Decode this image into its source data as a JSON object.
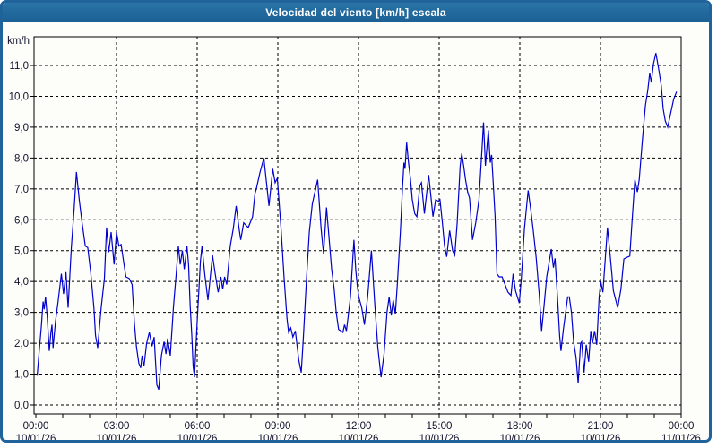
{
  "window": {
    "title": "Velocidad del viento [km/h] escala",
    "colors": {
      "frame": "#1f639a",
      "titlebar": "#21689a",
      "title_text": "#ffffff",
      "background": "#fdfdfa",
      "plot_border": "#000000",
      "grid": "#000000",
      "line": "#0000cd",
      "tick_text": "#10102c"
    }
  },
  "chart_data": {
    "type": "line",
    "title": "Velocidad del viento [km/h] escala",
    "ylabel": "km/h",
    "xlabel": "",
    "ylim": [
      0,
      12
    ],
    "xlim_hours": [
      0,
      24
    ],
    "grid": "dashed",
    "legend": "none",
    "decimal_separator": ",",
    "y_ticks": [
      {
        "value": 0,
        "label": "0,0"
      },
      {
        "value": 1,
        "label": "1,0"
      },
      {
        "value": 2,
        "label": "2,0"
      },
      {
        "value": 3,
        "label": "3,0"
      },
      {
        "value": 4,
        "label": "4,0"
      },
      {
        "value": 5,
        "label": "5,0"
      },
      {
        "value": 6,
        "label": "6,0"
      },
      {
        "value": 7,
        "label": "7,0"
      },
      {
        "value": 8,
        "label": "8,0"
      },
      {
        "value": 9,
        "label": "9,0"
      },
      {
        "value": 10,
        "label": "10,0"
      },
      {
        "value": 11,
        "label": "11,0"
      }
    ],
    "x_ticks": [
      {
        "hour": 0,
        "time": "00:00",
        "date": "10/01/26"
      },
      {
        "hour": 3,
        "time": "03:00",
        "date": "10/01/26"
      },
      {
        "hour": 6,
        "time": "06:00",
        "date": "10/01/26"
      },
      {
        "hour": 9,
        "time": "09:00",
        "date": "10/01/26"
      },
      {
        "hour": 12,
        "time": "12:00",
        "date": "10/01/26"
      },
      {
        "hour": 15,
        "time": "15:00",
        "date": "10/01/26"
      },
      {
        "hour": 18,
        "time": "18:00",
        "date": "10/01/26"
      },
      {
        "hour": 21,
        "time": "21:00",
        "date": "10/01/26"
      },
      {
        "hour": 24,
        "time": "00:00",
        "date": "11/01/26"
      }
    ],
    "minor_tick_every_hours": 1,
    "series_name": "Velocidad del viento",
    "units": "km/h",
    "points": [
      [
        0.05,
        0.95
      ],
      [
        0.13,
        1.8
      ],
      [
        0.2,
        2.5
      ],
      [
        0.27,
        3.35
      ],
      [
        0.31,
        3.1
      ],
      [
        0.36,
        3.5
      ],
      [
        0.42,
        2.9
      ],
      [
        0.5,
        1.75
      ],
      [
        0.56,
        2.35
      ],
      [
        0.6,
        2.6
      ],
      [
        0.64,
        1.85
      ],
      [
        0.73,
        2.7
      ],
      [
        0.82,
        3.3
      ],
      [
        0.95,
        4.25
      ],
      [
        1.03,
        3.6
      ],
      [
        1.12,
        4.3
      ],
      [
        1.2,
        3.15
      ],
      [
        1.32,
        5.1
      ],
      [
        1.42,
        6.3
      ],
      [
        1.51,
        7.55
      ],
      [
        1.62,
        6.6
      ],
      [
        1.72,
        5.9
      ],
      [
        1.84,
        5.15
      ],
      [
        1.93,
        5.1
      ],
      [
        2.04,
        4.3
      ],
      [
        2.16,
        3.15
      ],
      [
        2.22,
        2.25
      ],
      [
        2.3,
        1.85
      ],
      [
        2.43,
        3.15
      ],
      [
        2.55,
        4.1
      ],
      [
        2.63,
        5.75
      ],
      [
        2.71,
        4.95
      ],
      [
        2.8,
        5.6
      ],
      [
        2.91,
        4.55
      ],
      [
        3.0,
        5.6
      ],
      [
        3.09,
        5.15
      ],
      [
        3.17,
        5.2
      ],
      [
        3.28,
        4.55
      ],
      [
        3.35,
        4.15
      ],
      [
        3.47,
        4.1
      ],
      [
        3.58,
        3.9
      ],
      [
        3.67,
        2.6
      ],
      [
        3.74,
        1.9
      ],
      [
        3.83,
        1.35
      ],
      [
        3.9,
        1.2
      ],
      [
        3.95,
        1.6
      ],
      [
        4.02,
        1.25
      ],
      [
        4.12,
        2.0
      ],
      [
        4.22,
        2.35
      ],
      [
        4.32,
        1.9
      ],
      [
        4.4,
        2.2
      ],
      [
        4.5,
        0.65
      ],
      [
        4.57,
        0.5
      ],
      [
        4.67,
        1.6
      ],
      [
        4.77,
        2.05
      ],
      [
        4.84,
        1.65
      ],
      [
        4.9,
        2.15
      ],
      [
        5.0,
        1.6
      ],
      [
        5.12,
        3.2
      ],
      [
        5.22,
        4.25
      ],
      [
        5.3,
        5.15
      ],
      [
        5.37,
        4.55
      ],
      [
        5.45,
        5.0
      ],
      [
        5.52,
        4.4
      ],
      [
        5.62,
        5.15
      ],
      [
        5.68,
        4.55
      ],
      [
        5.74,
        3.2
      ],
      [
        5.8,
        2.25
      ],
      [
        5.85,
        1.25
      ],
      [
        5.9,
        0.9
      ],
      [
        6.0,
        2.7
      ],
      [
        6.12,
        4.65
      ],
      [
        6.18,
        5.15
      ],
      [
        6.28,
        4.25
      ],
      [
        6.4,
        3.4
      ],
      [
        6.57,
        4.85
      ],
      [
        6.67,
        4.25
      ],
      [
        6.78,
        3.65
      ],
      [
        6.88,
        4.15
      ],
      [
        6.95,
        3.75
      ],
      [
        7.02,
        4.15
      ],
      [
        7.1,
        3.9
      ],
      [
        7.23,
        5.15
      ],
      [
        7.34,
        5.7
      ],
      [
        7.45,
        6.45
      ],
      [
        7.56,
        5.7
      ],
      [
        7.62,
        5.35
      ],
      [
        7.73,
        5.9
      ],
      [
        7.84,
        5.8
      ],
      [
        7.9,
        5.75
      ],
      [
        8.06,
        6.1
      ],
      [
        8.15,
        6.85
      ],
      [
        8.2,
        7.0
      ],
      [
        8.34,
        7.55
      ],
      [
        8.48,
        8.0
      ],
      [
        8.67,
        6.45
      ],
      [
        8.81,
        7.65
      ],
      [
        8.9,
        7.2
      ],
      [
        8.98,
        7.35
      ],
      [
        9.12,
        5.7
      ],
      [
        9.23,
        4.15
      ],
      [
        9.34,
        2.8
      ],
      [
        9.4,
        2.35
      ],
      [
        9.48,
        2.5
      ],
      [
        9.56,
        2.2
      ],
      [
        9.65,
        2.4
      ],
      [
        9.78,
        1.45
      ],
      [
        9.87,
        1.05
      ],
      [
        9.95,
        2.2
      ],
      [
        10.06,
        4.0
      ],
      [
        10.17,
        5.6
      ],
      [
        10.28,
        6.5
      ],
      [
        10.48,
        7.3
      ],
      [
        10.61,
        5.7
      ],
      [
        10.7,
        4.9
      ],
      [
        10.81,
        6.4
      ],
      [
        10.92,
        5.25
      ],
      [
        11.0,
        4.4
      ],
      [
        11.09,
        3.8
      ],
      [
        11.17,
        3.0
      ],
      [
        11.26,
        2.45
      ],
      [
        11.34,
        2.4
      ],
      [
        11.42,
        2.35
      ],
      [
        11.48,
        2.6
      ],
      [
        11.55,
        2.4
      ],
      [
        11.62,
        2.9
      ],
      [
        11.7,
        3.5
      ],
      [
        11.83,
        5.35
      ],
      [
        11.9,
        4.35
      ],
      [
        11.95,
        3.9
      ],
      [
        12.01,
        3.5
      ],
      [
        12.12,
        3.15
      ],
      [
        12.22,
        2.6
      ],
      [
        12.34,
        3.5
      ],
      [
        12.48,
        5.0
      ],
      [
        12.61,
        3.2
      ],
      [
        12.72,
        1.85
      ],
      [
        12.84,
        0.9
      ],
      [
        12.95,
        1.65
      ],
      [
        13.06,
        3.0
      ],
      [
        13.14,
        3.5
      ],
      [
        13.22,
        2.9
      ],
      [
        13.29,
        3.4
      ],
      [
        13.37,
        2.95
      ],
      [
        13.45,
        4.0
      ],
      [
        13.56,
        5.65
      ],
      [
        13.64,
        7.1
      ],
      [
        13.69,
        7.85
      ],
      [
        13.73,
        7.65
      ],
      [
        13.79,
        8.5
      ],
      [
        13.86,
        7.85
      ],
      [
        13.93,
        7.35
      ],
      [
        14.0,
        6.65
      ],
      [
        14.09,
        6.2
      ],
      [
        14.17,
        6.1
      ],
      [
        14.28,
        7.1
      ],
      [
        14.34,
        7.2
      ],
      [
        14.45,
        6.2
      ],
      [
        14.61,
        7.45
      ],
      [
        14.7,
        6.7
      ],
      [
        14.77,
        6.1
      ],
      [
        14.87,
        6.65
      ],
      [
        14.97,
        6.6
      ],
      [
        15.03,
        6.65
      ],
      [
        15.12,
        5.9
      ],
      [
        15.2,
        5.15
      ],
      [
        15.28,
        4.8
      ],
      [
        15.39,
        5.65
      ],
      [
        15.5,
        5.0
      ],
      [
        15.58,
        4.85
      ],
      [
        15.67,
        5.9
      ],
      [
        15.78,
        7.75
      ],
      [
        15.84,
        8.15
      ],
      [
        15.91,
        7.75
      ],
      [
        15.98,
        7.3
      ],
      [
        16.06,
        6.9
      ],
      [
        16.13,
        6.7
      ],
      [
        16.24,
        5.35
      ],
      [
        16.36,
        5.9
      ],
      [
        16.48,
        6.65
      ],
      [
        16.59,
        8.25
      ],
      [
        16.65,
        9.15
      ],
      [
        16.72,
        7.75
      ],
      [
        16.83,
        8.9
      ],
      [
        16.9,
        7.85
      ],
      [
        16.95,
        8.1
      ],
      [
        17.01,
        7.2
      ],
      [
        17.08,
        6.1
      ],
      [
        17.15,
        4.25
      ],
      [
        17.23,
        4.15
      ],
      [
        17.34,
        4.15
      ],
      [
        17.45,
        3.9
      ],
      [
        17.56,
        3.65
      ],
      [
        17.67,
        3.55
      ],
      [
        17.75,
        4.25
      ],
      [
        17.84,
        3.7
      ],
      [
        17.98,
        3.3
      ],
      [
        18.06,
        4.15
      ],
      [
        18.17,
        5.7
      ],
      [
        18.31,
        6.95
      ],
      [
        18.41,
        6.3
      ],
      [
        18.5,
        5.65
      ],
      [
        18.61,
        4.75
      ],
      [
        18.72,
        3.6
      ],
      [
        18.81,
        2.4
      ],
      [
        18.9,
        3.2
      ],
      [
        19.0,
        4.15
      ],
      [
        19.17,
        5.05
      ],
      [
        19.25,
        4.45
      ],
      [
        19.31,
        4.75
      ],
      [
        19.4,
        3.5
      ],
      [
        19.48,
        2.25
      ],
      [
        19.53,
        1.75
      ],
      [
        19.62,
        2.45
      ],
      [
        19.78,
        3.5
      ],
      [
        19.84,
        3.5
      ],
      [
        19.92,
        3.0
      ],
      [
        20.0,
        2.05
      ],
      [
        20.09,
        1.55
      ],
      [
        20.17,
        0.7
      ],
      [
        20.26,
        2.0
      ],
      [
        20.3,
        2.05
      ],
      [
        20.39,
        1.05
      ],
      [
        20.47,
        1.95
      ],
      [
        20.56,
        1.4
      ],
      [
        20.64,
        2.4
      ],
      [
        20.7,
        2.0
      ],
      [
        20.78,
        2.4
      ],
      [
        20.86,
        1.95
      ],
      [
        20.95,
        3.5
      ],
      [
        21.01,
        4.0
      ],
      [
        21.09,
        3.65
      ],
      [
        21.26,
        5.75
      ],
      [
        21.37,
        4.75
      ],
      [
        21.48,
        3.7
      ],
      [
        21.64,
        3.15
      ],
      [
        21.76,
        3.75
      ],
      [
        21.87,
        4.73
      ],
      [
        21.98,
        4.78
      ],
      [
        22.09,
        4.82
      ],
      [
        22.17,
        5.9
      ],
      [
        22.28,
        7.3
      ],
      [
        22.37,
        6.9
      ],
      [
        22.44,
        7.3
      ],
      [
        22.56,
        8.6
      ],
      [
        22.67,
        9.7
      ],
      [
        22.76,
        10.2
      ],
      [
        22.83,
        10.75
      ],
      [
        22.89,
        10.45
      ],
      [
        22.97,
        11.05
      ],
      [
        23.06,
        11.4
      ],
      [
        23.17,
        10.85
      ],
      [
        23.26,
        10.35
      ],
      [
        23.33,
        9.6
      ],
      [
        23.41,
        9.2
      ],
      [
        23.5,
        9.0
      ],
      [
        23.61,
        9.45
      ],
      [
        23.72,
        9.9
      ],
      [
        23.83,
        10.15
      ]
    ]
  }
}
